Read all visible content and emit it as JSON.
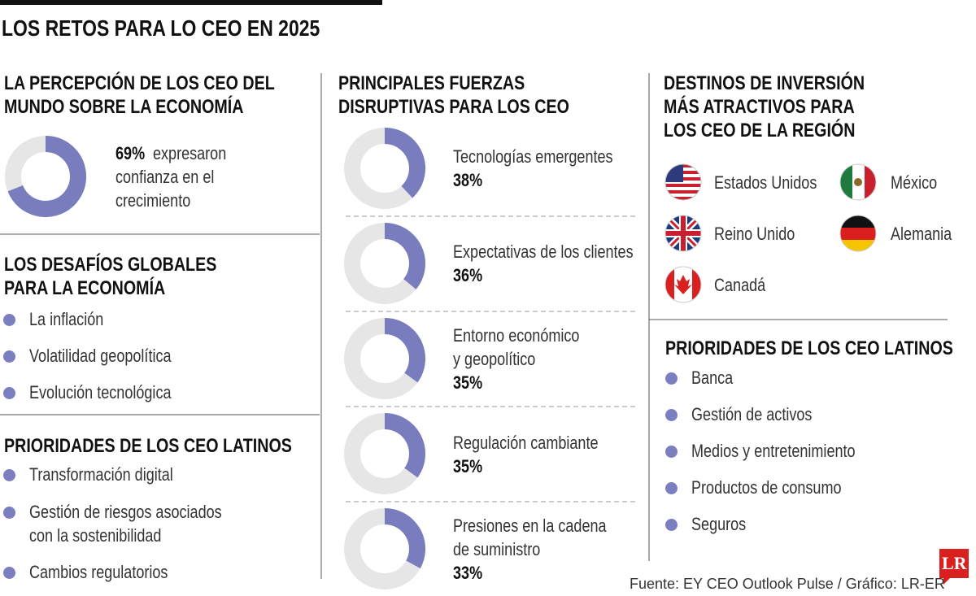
{
  "header": {
    "title": "LOS RETOS PARA LO CEO EN 2025"
  },
  "perception": {
    "title_lines": [
      "LA PERCEPCIÓN DE LOS CEO DEL",
      "MUNDO SOBRE LA ECONOMÍA"
    ],
    "percent": 69,
    "percent_label": "69%",
    "text_lines": [
      "expresaron",
      "confianza en el",
      "crecimiento"
    ]
  },
  "challenges": {
    "title_lines": [
      "LOS DESAFÍOS GLOBALES",
      "PARA LA ECONOMÍA"
    ],
    "items": [
      [
        "La inflación"
      ],
      [
        "Volatilidad geopolítica"
      ],
      [
        "Evolución tecnológica"
      ]
    ]
  },
  "priorities_left": {
    "title_lines": [
      "PRIORIDADES DE LOS CEO LATINOS"
    ],
    "items": [
      [
        "Transformación digital"
      ],
      [
        "Gestión de riesgos asociados",
        "con la sostenibilidad"
      ],
      [
        "Cambios regulatorios"
      ]
    ]
  },
  "forces": {
    "title_lines": [
      "PRINCIPALES FUERZAS",
      "DISRUPTIVAS PARA LOS CEO"
    ],
    "items": [
      {
        "label_lines": [
          "Tecnologías emergentes"
        ],
        "percent": 38,
        "percent_label": "38%"
      },
      {
        "label_lines": [
          "Expectativas de los clientes"
        ],
        "percent": 36,
        "percent_label": "36%"
      },
      {
        "label_lines": [
          "Entorno económico",
          "y geopolítico"
        ],
        "percent": 35,
        "percent_label": "35%"
      },
      {
        "label_lines": [
          "Regulación cambiante"
        ],
        "percent": 35,
        "percent_label": "35%"
      },
      {
        "label_lines": [
          "Presiones en la cadena",
          "de suministro"
        ],
        "percent": 33,
        "percent_label": "33%"
      }
    ]
  },
  "destinations": {
    "title_lines": [
      "DESTINOS DE INVERSIÓN",
      "MÁS ATRACTIVOS PARA",
      "LOS CEO DE LA REGIÓN"
    ],
    "items": [
      "Estados Unidos",
      "México",
      "Reino Unido",
      "Alemania",
      "Canadá"
    ]
  },
  "priorities_right": {
    "title_lines": [
      "PRIORIDADES DE LOS CEO LATINOS"
    ],
    "items": [
      [
        "Banca"
      ],
      [
        "Gestión de activos"
      ],
      [
        "Medios y entretenimiento"
      ],
      [
        "Productos de consumo"
      ],
      [
        "Seguros"
      ]
    ]
  },
  "footer": {
    "source": "Fuente: EY CEO Outlook Pulse / Gráfico: LR-ER",
    "logo": "LR"
  }
}
